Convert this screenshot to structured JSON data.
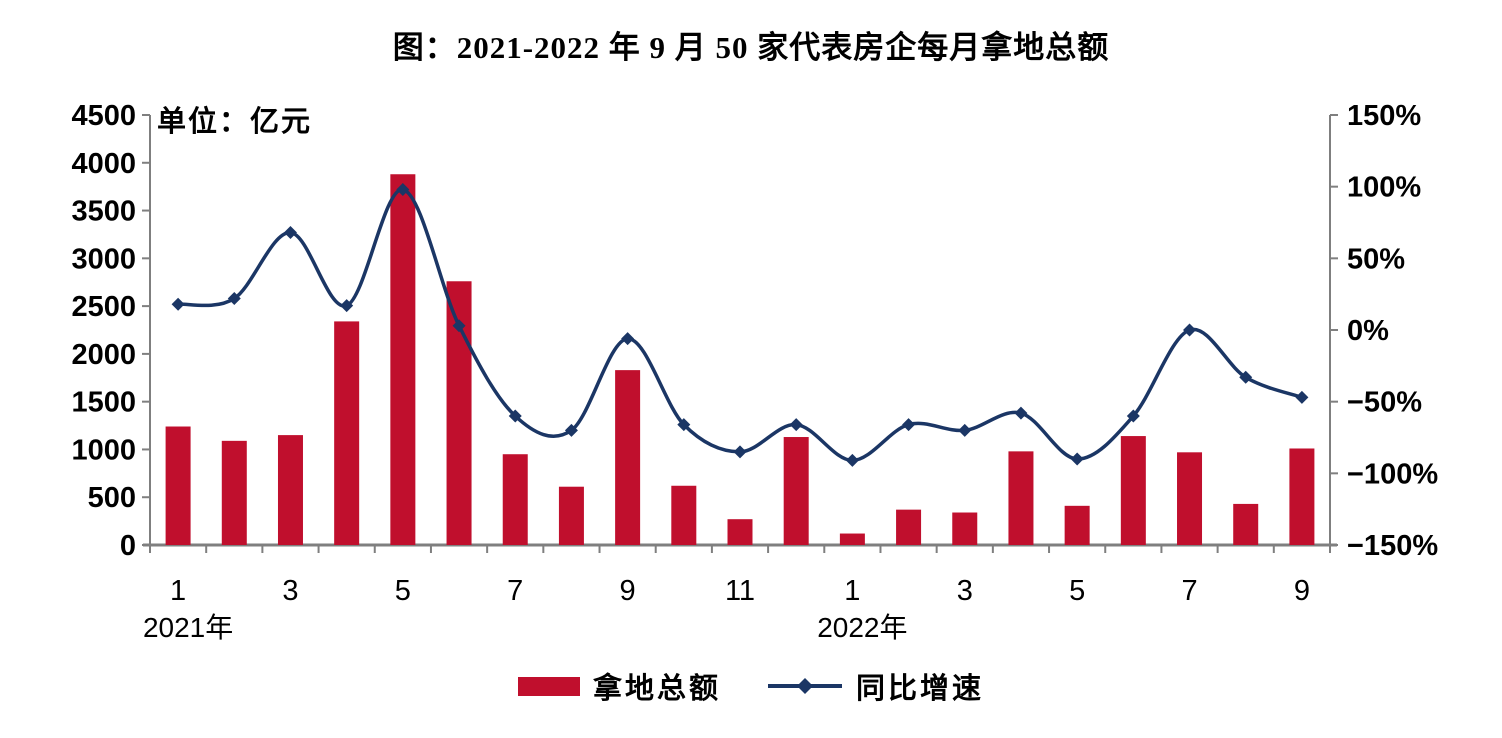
{
  "colors": {
    "bar": "#C00F2D",
    "line": "#1B3665",
    "axis": "#7F7F7F",
    "text": "#000000",
    "background": "#FFFFFF"
  },
  "chart_data": {
    "type": "combo_bar_line",
    "title": "图：2021-2022 年 9 月 50 家代表房企每月拿地总额",
    "x_groups": [
      {
        "year_label": "2021年",
        "months": [
          1,
          2,
          3,
          4,
          5,
          6,
          7,
          8,
          9,
          10,
          11,
          12
        ]
      },
      {
        "year_label": "2022年",
        "months": [
          1,
          2,
          3,
          4,
          5,
          6,
          7,
          8,
          9
        ]
      }
    ],
    "x_tick_labels_shown": [
      "1",
      "3",
      "5",
      "7",
      "9",
      "11",
      "1",
      "3",
      "5",
      "7",
      "9"
    ],
    "series": [
      {
        "name": "拿地总额",
        "type": "bar",
        "axis": "left",
        "unit": "亿元",
        "color": "#C00F2D",
        "values": [
          1240,
          1090,
          1150,
          2340,
          3880,
          2760,
          950,
          610,
          1830,
          620,
          270,
          1130,
          120,
          370,
          340,
          980,
          410,
          1140,
          970,
          430,
          1010
        ]
      },
      {
        "name": "同比增速",
        "type": "line",
        "axis": "right",
        "unit": "%",
        "marker": "diamond",
        "color": "#1B3665",
        "values": [
          18,
          22,
          68,
          17,
          98,
          3,
          -60,
          -70,
          -6,
          -66,
          -85,
          -66,
          -91,
          -66,
          -70,
          -58,
          -90,
          -60,
          0,
          -33,
          -47
        ]
      }
    ],
    "left_axis": {
      "title": "单位：亿元",
      "min": 0,
      "max": 4500,
      "step": 500,
      "tick_labels": [
        "4500",
        "4000",
        "3500",
        "3000",
        "2500",
        "2000",
        "1500",
        "1000",
        "500",
        "0"
      ]
    },
    "right_axis": {
      "min": -150,
      "max": 150,
      "step": 50,
      "tick_labels": [
        "150%",
        "100%",
        "50%",
        "0%",
        "−50%",
        "−100%",
        "−150%"
      ]
    },
    "grid": false,
    "legend_position": "bottom"
  }
}
